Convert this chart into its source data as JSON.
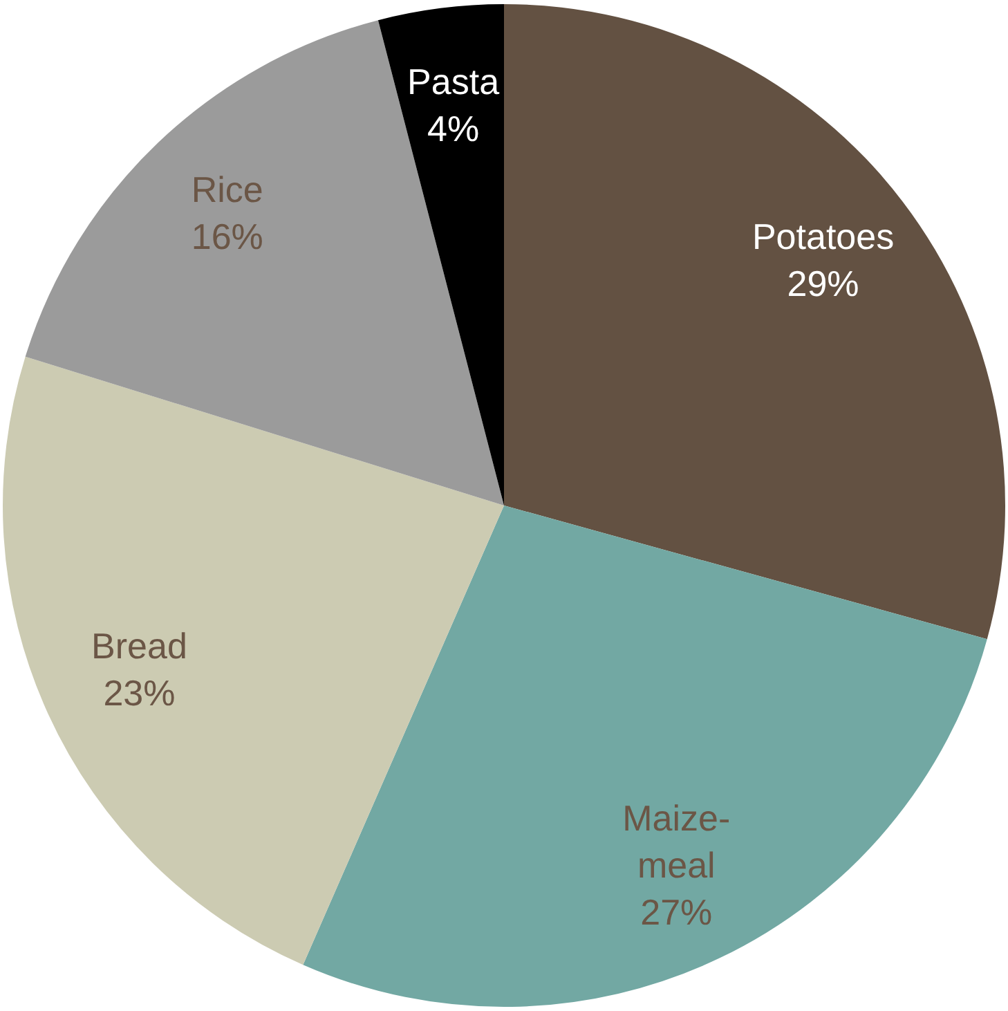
{
  "chart_data": {
    "type": "pie",
    "categories": [
      "Potatoes",
      "Maize-meal",
      "Bread",
      "Rice",
      "Pasta"
    ],
    "values": [
      29,
      27,
      23,
      16,
      4
    ],
    "colors": [
      "#635142",
      "#72a8a3",
      "#cccbb2",
      "#9b9b9b",
      "#000000"
    ],
    "value_labels": [
      "29%",
      "27%",
      "23%",
      "16%",
      "4%"
    ],
    "legend": false
  }
}
